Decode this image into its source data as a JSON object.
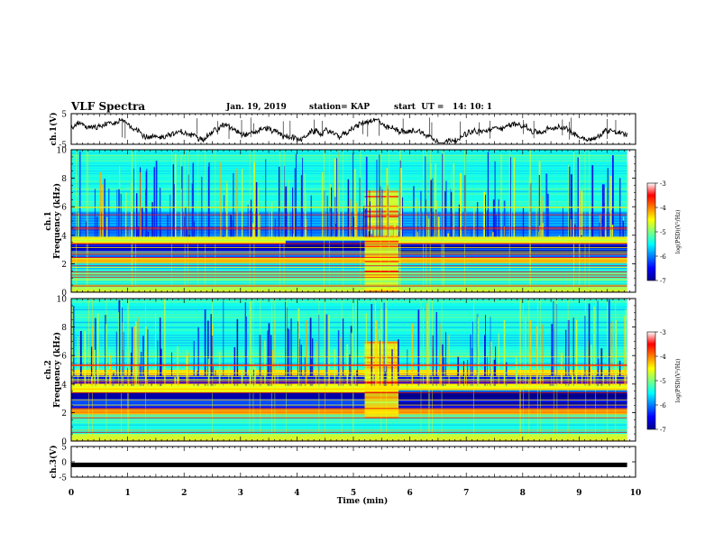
{
  "header": {
    "title": "VLF Spectra",
    "date": "Jan. 19, 2019",
    "station": "station= KAP",
    "start": "start  UT =   14: 10: 1"
  },
  "chart_data": [
    {
      "type": "line",
      "name": "ch1-waveform",
      "ylabel": "ch.1(V)",
      "xlim": [
        0,
        10
      ],
      "ylim": [
        -5,
        5
      ],
      "y_ticks": [
        "5",
        "-5"
      ],
      "x_end": 9.85,
      "pattern": "noisy oscillating signal, roughly between -4 and +3 V"
    },
    {
      "type": "heatmap",
      "name": "ch1-spectrogram",
      "ylabel": "ch.1\nFrequency (kHz)",
      "xlim": [
        0,
        10
      ],
      "ylim": [
        0,
        10
      ],
      "y_ticks": [
        "0",
        "2",
        "4",
        "6",
        "8",
        "10"
      ],
      "x_end": 9.85,
      "colorbar": {
        "label": "log(PSD)(V²/Hz)",
        "range": [
          -7,
          -3
        ],
        "ticks": [
          "-3",
          "-4",
          "-5",
          "-6",
          "-7"
        ]
      },
      "bands": [
        {
          "f": [
            0.0,
            0.4
          ],
          "level": -4.8
        },
        {
          "f": [
            0.4,
            1.6
          ],
          "level": -5.3
        },
        {
          "f": [
            1.6,
            2.0
          ],
          "level": -5.6
        },
        {
          "f": [
            2.0,
            2.4
          ],
          "level": -4.3
        },
        {
          "f": [
            2.4,
            2.9
          ],
          "level": -6.2
        },
        {
          "f": [
            2.9,
            3.4
          ],
          "level": -6.7
        },
        {
          "f": [
            3.4,
            3.9
          ],
          "level": -4.6
        },
        {
          "f": [
            3.9,
            5.6
          ],
          "level": -6.0
        },
        {
          "f": [
            5.6,
            10.0
          ],
          "level": -5.4
        }
      ],
      "events": [
        {
          "t": [
            5.2,
            5.8
          ],
          "f": [
            0,
            7
          ],
          "level": -4.6
        },
        {
          "t": [
            3.8,
            5.2
          ],
          "f": [
            2.8,
            3.6
          ],
          "level": -6.8
        },
        {
          "t": [
            5.8,
            9.85
          ],
          "f": [
            2.6,
            3.4
          ],
          "level": -6.9
        }
      ]
    },
    {
      "type": "heatmap",
      "name": "ch2-spectrogram",
      "ylabel": "ch.2\nFrequency (kHz)",
      "xlim": [
        0,
        10
      ],
      "ylim": [
        0,
        10
      ],
      "y_ticks": [
        "0",
        "2",
        "4",
        "6",
        "8",
        "10"
      ],
      "x_end": 9.85,
      "colorbar": {
        "label": "log(PSD)(V²/Hz)",
        "range": [
          -7,
          -3
        ],
        "ticks": [
          "-3",
          "-4",
          "-5",
          "-6",
          "-7"
        ]
      },
      "bands": [
        {
          "f": [
            0.0,
            0.5
          ],
          "level": -4.7
        },
        {
          "f": [
            0.5,
            1.8
          ],
          "level": -5.4
        },
        {
          "f": [
            1.8,
            2.2
          ],
          "level": -4.2
        },
        {
          "f": [
            2.2,
            2.9
          ],
          "level": -6.3
        },
        {
          "f": [
            2.9,
            3.4
          ],
          "level": -6.8
        },
        {
          "f": [
            3.4,
            4.0
          ],
          "level": -4.5
        },
        {
          "f": [
            4.0,
            4.6
          ],
          "level": -6.4
        },
        {
          "f": [
            4.6,
            5.0
          ],
          "level": -4.4
        },
        {
          "f": [
            5.0,
            10.0
          ],
          "level": -5.4
        }
      ],
      "events": [
        {
          "t": [
            5.2,
            5.8
          ],
          "f": [
            1.6,
            7
          ],
          "level": -4.4
        },
        {
          "t": [
            5.8,
            9.85
          ],
          "f": [
            2.4,
            3.5
          ],
          "level": -6.9
        }
      ]
    },
    {
      "type": "line",
      "name": "ch3-waveform",
      "ylabel": "ch.3(V)",
      "xlim": [
        0,
        10
      ],
      "ylim": [
        -5,
        5
      ],
      "y_ticks": [
        "5",
        "0",
        "-5"
      ],
      "x_end": 9.85,
      "pattern": "flat line near -1 V"
    }
  ],
  "x_axis": {
    "label": "Time (min)",
    "ticks": [
      "0",
      "1",
      "2",
      "3",
      "4",
      "5",
      "6",
      "7",
      "8",
      "9",
      "10"
    ]
  }
}
